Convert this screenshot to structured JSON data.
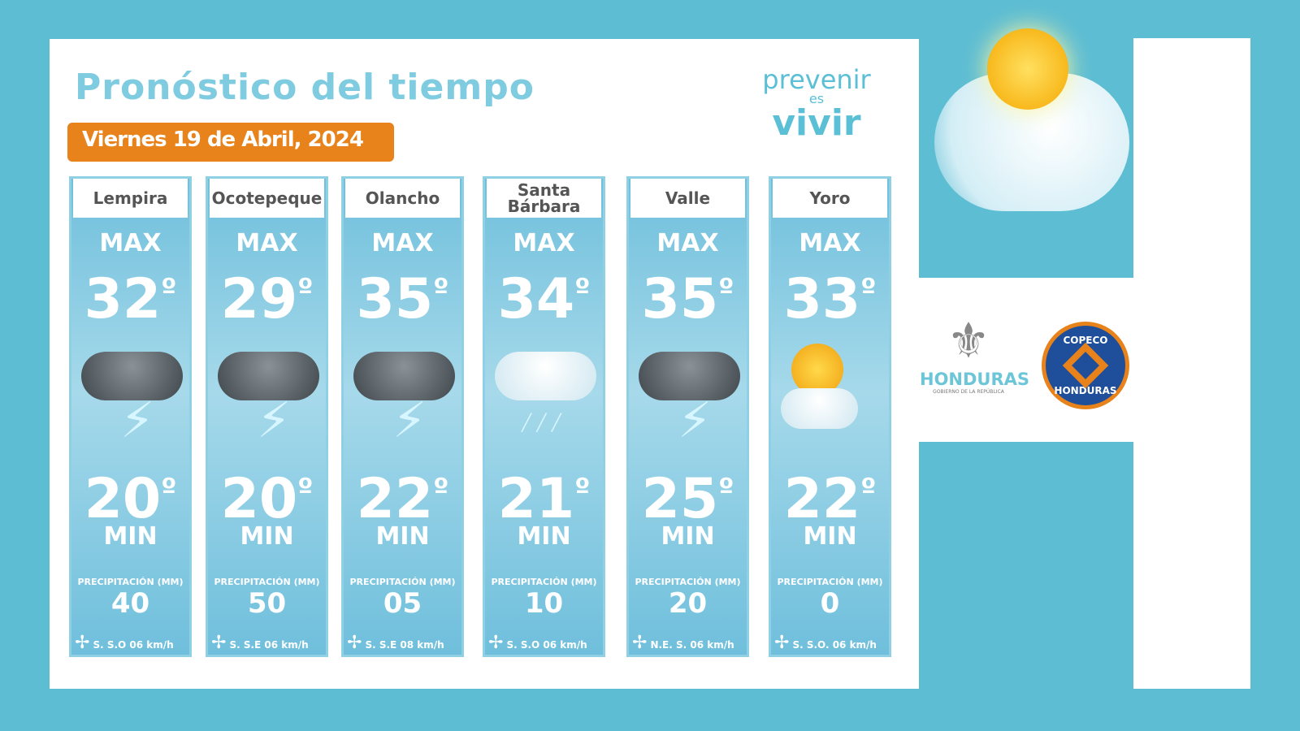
{
  "title": "Pronóstico del tiempo",
  "date": "Viernes 19 de Abril, 2024",
  "slogan": {
    "line1": "prevenir",
    "line2": "es",
    "line3": "vivir"
  },
  "max_label": "MAX",
  "min_label": "MIN",
  "precip_label": "PRECIPITACIÓN (MM)",
  "cards": [
    {
      "name": "Lempira",
      "max": "32",
      "min": "20",
      "precip": "40",
      "wind": "S. S.O 06 km/h",
      "icon": "storm"
    },
    {
      "name": "Ocotepeque",
      "max": "29",
      "min": "20",
      "precip": "50",
      "wind": "S. S.E 06 km/h",
      "icon": "storm"
    },
    {
      "name": "Olancho",
      "max": "35",
      "min": "22",
      "precip": "05",
      "wind": "S. S.E 08 km/h",
      "icon": "storm"
    },
    {
      "name": "Santa Bárbara",
      "max": "34",
      "min": "21",
      "precip": "10",
      "wind": "S. S.O 06 km/h",
      "icon": "rain"
    },
    {
      "name": "Valle",
      "max": "35",
      "min": "25",
      "precip": "20",
      "wind": "N.E. S. 06 km/h",
      "icon": "storm"
    },
    {
      "name": "Yoro",
      "max": "33",
      "min": "22",
      "precip": "0",
      "wind": "S. S.O. 06 km/h",
      "icon": "sun-cloud"
    }
  ],
  "logos": {
    "honduras": "HONDURAS",
    "honduras_sub": "GOBIERNO DE LA REPÚBLICA",
    "copeco_top": "COPECO",
    "copeco_bottom": "HONDURAS"
  },
  "colors": {
    "background": "#5dbdd3",
    "accent": "#e8821a",
    "title": "#7fcbe0"
  }
}
